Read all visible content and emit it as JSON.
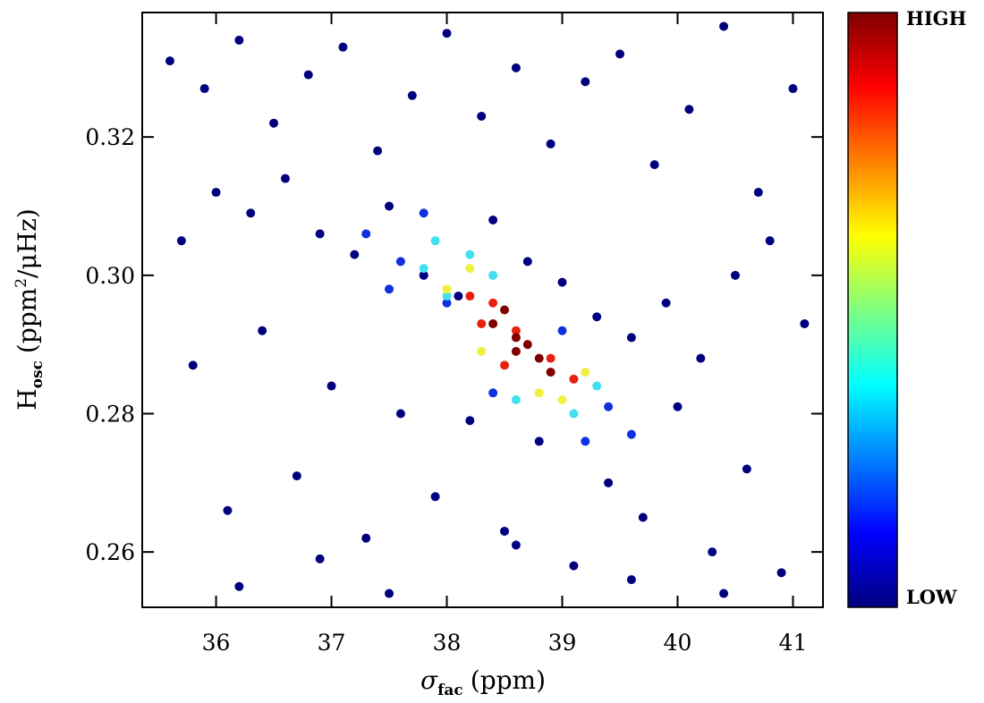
{
  "chart_data": {
    "type": "scatter",
    "x_label": {
      "symbol": "σ",
      "sub": "fac",
      "unit": "(ppm)"
    },
    "y_label": {
      "symbol": "H",
      "sub": "osc",
      "unit_a": "(ppm",
      "sup": "2",
      "unit_b": "/μHz)"
    },
    "xlim": [
      35.36,
      41.26
    ],
    "ylim": [
      0.252,
      0.338
    ],
    "xticks": [
      36,
      37,
      38,
      39,
      40,
      41
    ],
    "yticks": [
      0.26,
      0.28,
      0.3,
      0.32
    ],
    "colorbar": {
      "high": "HIGH",
      "low": "LOW",
      "colors": [
        "#00007f",
        "#0000ff",
        "#0080ff",
        "#00ffff",
        "#80ff80",
        "#ffff00",
        "#ff8000",
        "#ff0000",
        "#7f0000"
      ]
    },
    "series": [
      {
        "color": "#00007f",
        "x": [
          35.6,
          35.9,
          36.2,
          36.5,
          36.8,
          37.1,
          37.4,
          37.7,
          38.0,
          38.3,
          38.6,
          38.9,
          39.2,
          39.5,
          39.8,
          40.1,
          40.4,
          40.7,
          41.0,
          35.7,
          36.0,
          36.3,
          36.6,
          36.9,
          37.2,
          37.5,
          37.8,
          38.1,
          38.4,
          38.7,
          39.0,
          39.3,
          39.6,
          39.9,
          40.2,
          40.5,
          40.8,
          41.1,
          35.8,
          36.4,
          37.0,
          37.6,
          38.2,
          38.8,
          39.4,
          40.0,
          40.6,
          36.1,
          36.7,
          37.3,
          37.9,
          38.5,
          39.1,
          39.7,
          40.3,
          40.9,
          36.2,
          36.9,
          37.5,
          38.6,
          39.6,
          40.4
        ],
        "y": [
          0.331,
          0.327,
          0.334,
          0.322,
          0.329,
          0.333,
          0.318,
          0.326,
          0.335,
          0.323,
          0.33,
          0.319,
          0.328,
          0.332,
          0.316,
          0.324,
          0.336,
          0.312,
          0.327,
          0.305,
          0.312,
          0.309,
          0.314,
          0.306,
          0.303,
          0.31,
          0.3,
          0.297,
          0.308,
          0.302,
          0.299,
          0.294,
          0.291,
          0.296,
          0.288,
          0.3,
          0.305,
          0.293,
          0.287,
          0.292,
          0.284,
          0.28,
          0.279,
          0.276,
          0.27,
          0.281,
          0.272,
          0.266,
          0.271,
          0.262,
          0.268,
          0.263,
          0.258,
          0.265,
          0.26,
          0.257,
          0.255,
          0.259,
          0.254,
          0.261,
          0.256,
          0.254
        ]
      },
      {
        "color": "#1030e0",
        "x": [
          37.3,
          37.6,
          37.8,
          39.4,
          39.6,
          39.2,
          38.0,
          38.4,
          39.0,
          37.5
        ],
        "y": [
          0.306,
          0.302,
          0.309,
          0.281,
          0.277,
          0.276,
          0.296,
          0.283,
          0.292,
          0.298
        ]
      },
      {
        "color": "#40e0f0",
        "x": [
          37.8,
          38.0,
          38.2,
          39.3,
          39.1,
          38.6,
          37.9,
          38.4
        ],
        "y": [
          0.301,
          0.297,
          0.303,
          0.284,
          0.28,
          0.282,
          0.305,
          0.3
        ]
      },
      {
        "color": "#f0f040",
        "x": [
          38.0,
          38.2,
          39.2,
          39.0,
          38.3,
          38.8
        ],
        "y": [
          0.298,
          0.301,
          0.286,
          0.282,
          0.289,
          0.283
        ]
      },
      {
        "color": "#e82010",
        "x": [
          38.2,
          38.4,
          38.6,
          38.9,
          39.1,
          38.5,
          38.3
        ],
        "y": [
          0.297,
          0.296,
          0.292,
          0.288,
          0.285,
          0.287,
          0.293
        ]
      },
      {
        "color": "#800000",
        "x": [
          38.4,
          38.6,
          38.8,
          38.5,
          38.7,
          38.9,
          38.6
        ],
        "y": [
          0.293,
          0.291,
          0.288,
          0.295,
          0.29,
          0.286,
          0.289
        ]
      }
    ]
  }
}
